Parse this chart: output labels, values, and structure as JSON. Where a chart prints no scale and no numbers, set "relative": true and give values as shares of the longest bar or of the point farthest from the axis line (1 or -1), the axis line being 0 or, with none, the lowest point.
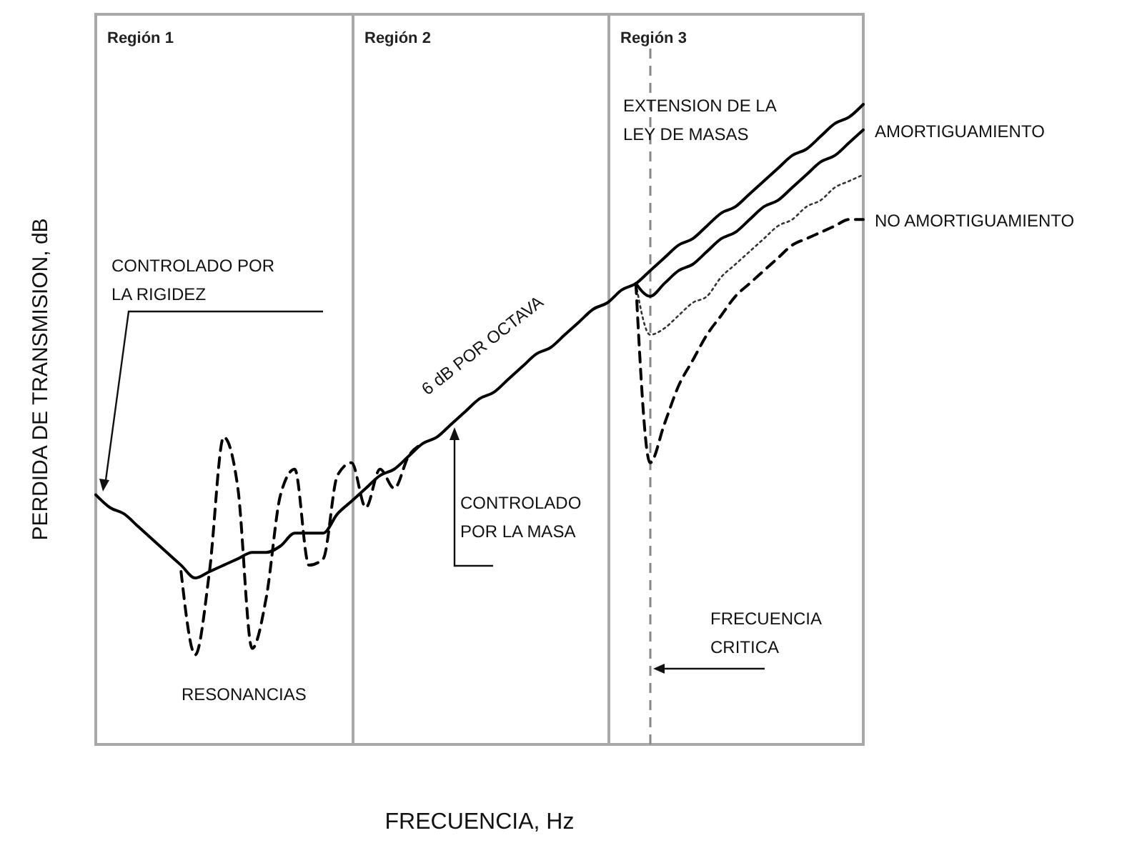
{
  "chart_data": {
    "type": "line",
    "relative": true,
    "xlabel": "FRECUENCIA, Hz",
    "ylabel": "PERDIDA DE TRANSMISION, dB",
    "categories": [
      null,
      null,
      null,
      null,
      null,
      null,
      null,
      null,
      null,
      null,
      null,
      null,
      null,
      null,
      null,
      null,
      null,
      null,
      null,
      null,
      null,
      null,
      null,
      null,
      null,
      null,
      null,
      null,
      null,
      null,
      null,
      null,
      null,
      null,
      null,
      null,
      null,
      null,
      null,
      null,
      null,
      null,
      null,
      null,
      null,
      null,
      null,
      null,
      null,
      null,
      null,
      null,
      null,
      null,
      null
    ],
    "series": [
      {
        "name": "EXTENSION DE LA LEY DE MASAS",
        "color": "#000000",
        "line_style": "solid",
        "values": [
          0.39,
          0.37,
          0.36,
          0.34,
          0.32,
          0.3,
          0.28,
          0.26,
          0.27,
          0.28,
          0.29,
          0.3,
          0.3,
          0.31,
          0.33,
          0.33,
          0.33,
          0.36,
          0.38,
          0.4,
          0.42,
          0.43,
          0.45,
          0.47,
          0.48,
          0.5,
          0.52,
          0.54,
          0.55,
          0.57,
          0.59,
          0.61,
          0.62,
          0.64,
          0.66,
          0.68,
          0.69,
          0.71,
          0.72,
          0.74,
          0.76,
          0.78,
          0.79,
          0.81,
          0.83,
          0.84,
          0.86,
          0.88,
          0.9,
          0.92,
          0.93,
          0.95,
          0.97,
          0.98,
          1
        ]
      },
      {
        "color": "#000000",
        "line_style": "dashed",
        "values": [
          null,
          null,
          null,
          null,
          null,
          null,
          0.27,
          0.14,
          0.27,
          0.48,
          0.4,
          0.15,
          0.23,
          0.39,
          0.43,
          0.28,
          0.29,
          0.42,
          0.44,
          0.37,
          0.43,
          0.4,
          0.45,
          0.47,
          null,
          null,
          null,
          null,
          null,
          null,
          null,
          null,
          null,
          null,
          null,
          null,
          null,
          null,
          null,
          null,
          null,
          null,
          null,
          null,
          null,
          null,
          null,
          null,
          null,
          null,
          null,
          null,
          null,
          null,
          null
        ]
      },
      {
        "name": "AMORTIGUAMIENTO",
        "color": "#000000",
        "line_style": "solid",
        "values": [
          null,
          null,
          null,
          null,
          null,
          null,
          null,
          null,
          null,
          null,
          null,
          null,
          null,
          null,
          null,
          null,
          null,
          null,
          null,
          null,
          null,
          null,
          null,
          null,
          null,
          null,
          null,
          null,
          null,
          null,
          null,
          null,
          null,
          null,
          null,
          null,
          null,
          null,
          0.72,
          0.7,
          0.72,
          0.74,
          0.75,
          0.77,
          0.79,
          0.8,
          0.82,
          0.84,
          0.85,
          0.87,
          0.89,
          0.91,
          0.92,
          0.94,
          0.96
        ]
      },
      {
        "color": "#333333",
        "line_style": "dotted",
        "values": [
          null,
          null,
          null,
          null,
          null,
          null,
          null,
          null,
          null,
          null,
          null,
          null,
          null,
          null,
          null,
          null,
          null,
          null,
          null,
          null,
          null,
          null,
          null,
          null,
          null,
          null,
          null,
          null,
          null,
          null,
          null,
          null,
          null,
          null,
          null,
          null,
          null,
          null,
          0.72,
          0.64,
          0.65,
          0.67,
          0.69,
          0.7,
          0.73,
          0.75,
          0.77,
          0.79,
          0.81,
          0.82,
          0.84,
          0.85,
          0.87,
          0.88,
          0.89
        ]
      },
      {
        "name": "NO AMORTIGUAMIENTO",
        "color": "#000000",
        "line_style": "dashed",
        "values": [
          null,
          null,
          null,
          null,
          null,
          null,
          null,
          null,
          null,
          null,
          null,
          null,
          null,
          null,
          null,
          null,
          null,
          null,
          null,
          null,
          null,
          null,
          null,
          null,
          null,
          null,
          null,
          null,
          null,
          null,
          null,
          null,
          null,
          null,
          null,
          null,
          null,
          null,
          0.72,
          0.44,
          0.5,
          0.56,
          0.6,
          0.64,
          0.67,
          0.7,
          0.72,
          0.74,
          0.76,
          0.78,
          0.79,
          0.8,
          0.81,
          0.82,
          0.82
        ]
      }
    ],
    "annotations": [
      "CONTROLADO POR LA RIGIDEZ",
      "RESONANCIAS",
      "6 dB POR OCTAVA",
      "CONTROLADO POR LA MASA",
      "Región 1",
      "Región 2",
      "Región 3",
      "FRECUENCIA CRITICA"
    ]
  }
}
